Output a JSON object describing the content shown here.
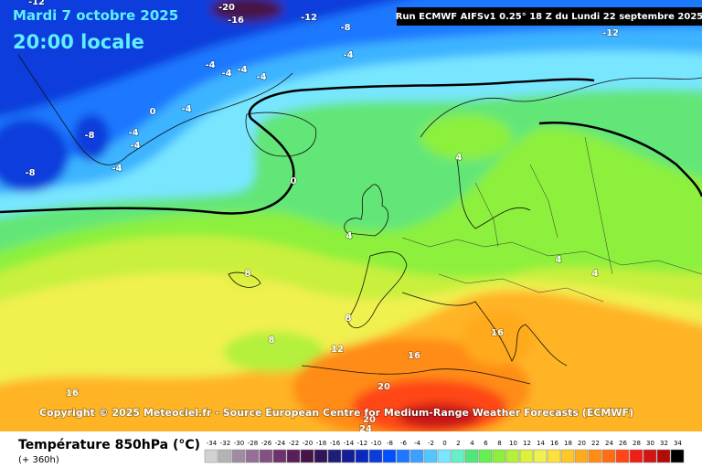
{
  "header": {
    "date": "Mardi 7 octobre 2025",
    "time": "20:00 locale",
    "run": "Run ECMWF AIFSv1 0.25° 18 Z du Lundi 22 septembre 2025"
  },
  "map": {
    "contour_labels": [
      -12,
      -20,
      -16,
      -12,
      -8,
      -12,
      -4,
      -4,
      -4,
      -4,
      -4,
      -4,
      0,
      -4,
      -8,
      -4,
      -4,
      -8,
      0,
      4,
      4,
      4,
      4,
      8,
      8,
      8,
      12,
      16,
      16,
      16,
      20,
      20,
      24
    ]
  },
  "copyright": "Copyright © 2025 Meteociel.fr - Source European Centre for Medium-Range Weather Forecasts (ECMWF)",
  "legend": {
    "title": "Température 850hPa (°C)",
    "subtitle": "(+ 360h)",
    "ticks": [
      -34,
      -32,
      -30,
      -28,
      -26,
      -24,
      -22,
      -20,
      -18,
      -16,
      -14,
      -12,
      -10,
      -8,
      -6,
      -4,
      -2,
      0,
      2,
      4,
      6,
      8,
      10,
      12,
      14,
      16,
      18,
      20,
      22,
      24,
      26,
      28,
      30,
      32,
      34
    ],
    "colors": [
      "#d2d2d2",
      "#b4b4b4",
      "#a08ca0",
      "#966e96",
      "#825082",
      "#6e326e",
      "#5a1e5a",
      "#461446",
      "#32145a",
      "#1e1e78",
      "#141e96",
      "#0a28be",
      "#0a3cdc",
      "#0050ff",
      "#1e78ff",
      "#3ca0ff",
      "#50c8ff",
      "#78e6ff",
      "#64f0c8",
      "#50e678",
      "#64f050",
      "#8cf03c",
      "#b4f03c",
      "#dcf03c",
      "#f0f050",
      "#ffe13c",
      "#ffc828",
      "#ffaa1e",
      "#ff8c14",
      "#ff6e14",
      "#ff4614",
      "#f01e14",
      "#d21414",
      "#b40a0a",
      "#000000"
    ]
  }
}
